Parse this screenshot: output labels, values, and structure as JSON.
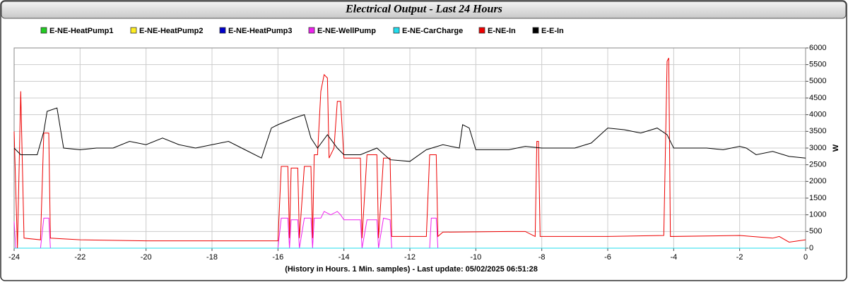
{
  "chart_data": {
    "type": "line",
    "title": "Electrical Output - Last 24 Hours",
    "xlabel": "(History in Hours. 1 Min. samples) - Last update: 05/02/2025 06:51:28",
    "ylabel": "W",
    "xlim": [
      -24,
      0
    ],
    "xticks": [
      -24,
      -22,
      -20,
      -18,
      -16,
      -14,
      -12,
      -10,
      -8,
      -6,
      -4,
      -2,
      0
    ],
    "ylim": [
      0,
      6000
    ],
    "yticks": [
      0,
      500,
      1000,
      1500,
      2000,
      2500,
      3000,
      3500,
      4000,
      4500,
      5000,
      5500,
      6000
    ],
    "grid": true,
    "legend": "top",
    "series": [
      {
        "name": "E-NE-HeatPump1",
        "color": "#22cc22",
        "x": [
          -24,
          0
        ],
        "values": [
          0,
          0
        ]
      },
      {
        "name": "E-NE-HeatPump2",
        "color": "#ffee22",
        "x": [
          -24,
          0
        ],
        "values": [
          0,
          0
        ]
      },
      {
        "name": "E-NE-HeatPump3",
        "color": "#0000cc",
        "x": [
          -24,
          0
        ],
        "values": [
          0,
          0
        ]
      },
      {
        "name": "E-NE-WellPump",
        "color": "#ee22ee",
        "x": [
          -24,
          -23.95,
          -23.2,
          -23.1,
          -22.95,
          -22.9,
          -16,
          -15.9,
          -15.7,
          -15.65,
          -15.6,
          -15.4,
          -15.35,
          -15.2,
          -15,
          -14.95,
          -14.9,
          -14.7,
          -14.6,
          -14.5,
          -14.4,
          -14.2,
          -14.1,
          -14,
          -13.5,
          -13.45,
          -13.3,
          -13,
          -12.95,
          -12.8,
          -12.6,
          -12.55,
          -11.4,
          -11.35,
          -11.2,
          -11.15,
          0
        ],
        "values": [
          800,
          0,
          0,
          900,
          900,
          0,
          0,
          900,
          900,
          0,
          850,
          850,
          0,
          900,
          900,
          0,
          900,
          900,
          1100,
          1050,
          1000,
          1100,
          1000,
          850,
          850,
          0,
          850,
          850,
          0,
          900,
          850,
          0,
          0,
          900,
          900,
          0,
          0
        ]
      },
      {
        "name": "E-NE-CarCharge",
        "color": "#22ddee",
        "x": [
          -24,
          0
        ],
        "values": [
          0,
          0
        ]
      },
      {
        "name": "E-NE-In",
        "color": "#ee0000",
        "x": [
          -24,
          -23.9,
          -23.8,
          -23.7,
          -23.2,
          -23.1,
          -22.95,
          -22.9,
          -22,
          -20,
          -18,
          -16,
          -15.9,
          -15.7,
          -15.65,
          -15.6,
          -15.4,
          -15.35,
          -15.2,
          -15,
          -14.95,
          -14.9,
          -14.8,
          -14.7,
          -14.6,
          -14.5,
          -14.45,
          -14.3,
          -14.2,
          -14.1,
          -14,
          -13.5,
          -13.45,
          -13.3,
          -13,
          -12.95,
          -12.8,
          -12.6,
          -12.55,
          -11.5,
          -11.4,
          -11.2,
          -11.15,
          -11,
          -9,
          -8.5,
          -8.2,
          -8.15,
          -8.1,
          -8.05,
          -6,
          -4.3,
          -4.2,
          -4.15,
          -4.1,
          -2,
          -1,
          -0.8,
          -0.5,
          0
        ],
        "values": [
          3500,
          0,
          4700,
          300,
          250,
          3450,
          3450,
          300,
          250,
          220,
          220,
          220,
          2450,
          2450,
          300,
          2400,
          2400,
          300,
          2450,
          2450,
          300,
          2800,
          2800,
          4700,
          5200,
          5100,
          2700,
          3000,
          4400,
          4400,
          2700,
          2700,
          300,
          2800,
          2800,
          300,
          2700,
          2700,
          350,
          350,
          2800,
          2800,
          350,
          480,
          500,
          500,
          350,
          3200,
          3200,
          350,
          350,
          380,
          5600,
          5700,
          350,
          380,
          300,
          350,
          180,
          250
        ]
      },
      {
        "name": "E-E-In",
        "color": "#000000",
        "x": [
          -24,
          -23.8,
          -23.3,
          -23.1,
          -23,
          -22.7,
          -22.5,
          -22,
          -21.5,
          -21,
          -20.5,
          -20,
          -19.5,
          -19,
          -18.5,
          -18,
          -17.5,
          -17,
          -16.5,
          -16.2,
          -16,
          -15.5,
          -15.2,
          -15,
          -14.8,
          -14.5,
          -14.2,
          -14,
          -13.5,
          -13,
          -12.6,
          -12,
          -11.5,
          -11,
          -10.5,
          -10.4,
          -10.2,
          -10,
          -9,
          -8.5,
          -8,
          -7,
          -6.5,
          -6,
          -5.5,
          -5,
          -4.5,
          -4.2,
          -4,
          -3,
          -2.5,
          -2,
          -1.8,
          -1.5,
          -1,
          -0.5,
          0
        ],
        "values": [
          3000,
          2800,
          2800,
          3500,
          4100,
          4200,
          3000,
          2950,
          3000,
          3000,
          3200,
          3100,
          3300,
          3100,
          3000,
          3100,
          3200,
          2950,
          2700,
          3600,
          3700,
          3900,
          4000,
          3300,
          3000,
          3400,
          3000,
          2800,
          2800,
          3000,
          2650,
          2600,
          2950,
          3100,
          3000,
          3700,
          3600,
          2950,
          2950,
          3050,
          3000,
          3000,
          3150,
          3600,
          3550,
          3450,
          3600,
          3400,
          3000,
          3000,
          2950,
          3050,
          3000,
          2800,
          2900,
          2750,
          2700
        ]
      }
    ]
  }
}
